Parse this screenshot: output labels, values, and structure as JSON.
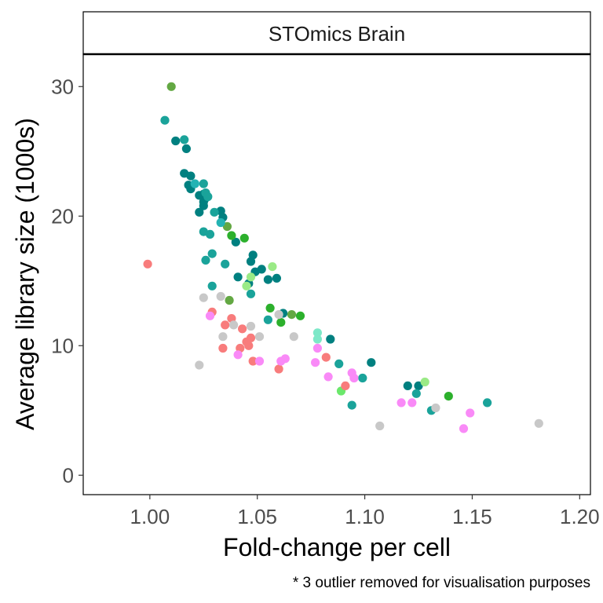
{
  "chart_data": {
    "type": "scatter",
    "panel_title": "STOmics Brain",
    "xlabel": "Fold-change per cell",
    "ylabel": "Average library size (1000s)",
    "footnote": "* 3 outlier removed for visualisation purposes",
    "xlim": [
      0.969,
      1.205
    ],
    "ylim": [
      -1.5,
      32.5
    ],
    "x_ticks": [
      1.0,
      1.05,
      1.1,
      1.15,
      1.2
    ],
    "x_tick_labels": [
      "1.00",
      "1.05",
      "1.10",
      "1.15",
      "1.20"
    ],
    "y_ticks": [
      0,
      10,
      20,
      30
    ],
    "y_tick_labels": [
      "0",
      "10",
      "20",
      "30"
    ],
    "grid": false,
    "legend": "none",
    "series": [
      {
        "color": "#008080",
        "points": [
          [
            1.012,
            25.8
          ],
          [
            1.017,
            25.2
          ],
          [
            1.016,
            23.3
          ],
          [
            1.019,
            23.1
          ],
          [
            1.018,
            22.4
          ],
          [
            1.019,
            22.1
          ],
          [
            1.023,
            21.6
          ],
          [
            1.025,
            21.7
          ],
          [
            1.026,
            21.4
          ],
          [
            1.025,
            21.1
          ],
          [
            1.025,
            20.8
          ],
          [
            1.023,
            20.3
          ],
          [
            1.033,
            20.4
          ],
          [
            1.034,
            19.9
          ],
          [
            1.04,
            18.0
          ],
          [
            1.048,
            17.0
          ],
          [
            1.047,
            16.5
          ],
          [
            1.052,
            15.9
          ],
          [
            1.049,
            15.7
          ],
          [
            1.055,
            15.1
          ],
          [
            1.059,
            15.2
          ],
          [
            1.041,
            15.3
          ],
          [
            1.046,
            14.8
          ],
          [
            1.062,
            12.5
          ],
          [
            1.084,
            10.5
          ],
          [
            1.103,
            8.7
          ],
          [
            1.12,
            6.9
          ],
          [
            1.125,
            6.9
          ]
        ]
      },
      {
        "color": "#1AA39A",
        "points": [
          [
            1.007,
            27.4
          ],
          [
            1.016,
            25.9
          ],
          [
            1.025,
            22.5
          ],
          [
            1.026,
            21.8
          ],
          [
            1.027,
            21.5
          ],
          [
            1.028,
            18.6
          ],
          [
            1.03,
            20.3
          ],
          [
            1.025,
            18.8
          ],
          [
            1.029,
            17.1
          ],
          [
            1.026,
            16.6
          ],
          [
            1.035,
            16.3
          ],
          [
            1.029,
            14.6
          ],
          [
            1.047,
            14.0
          ],
          [
            1.055,
            12.0
          ],
          [
            1.088,
            8.6
          ],
          [
            1.099,
            7.5
          ],
          [
            1.094,
            5.4
          ],
          [
            1.124,
            6.3
          ],
          [
            1.131,
            5.0
          ],
          [
            1.157,
            5.6
          ]
        ]
      },
      {
        "color": "#2CB02C",
        "points": [
          [
            1.038,
            18.5
          ],
          [
            1.044,
            18.3
          ],
          [
            1.056,
            12.9
          ],
          [
            1.061,
            11.8
          ],
          [
            1.07,
            12.3
          ],
          [
            1.139,
            6.1
          ]
        ]
      },
      {
        "color": "#63A843",
        "points": [
          [
            1.01,
            30.0
          ],
          [
            1.036,
            19.2
          ],
          [
            1.037,
            13.5
          ],
          [
            1.066,
            12.4
          ]
        ]
      },
      {
        "color": "#24B3B3",
        "points": [
          [
            1.021,
            22.5
          ],
          [
            1.033,
            19.5
          ]
        ]
      },
      {
        "color": "#9AEA86",
        "points": [
          [
            1.045,
            14.6
          ],
          [
            1.047,
            15.3
          ],
          [
            1.057,
            16.1
          ],
          [
            1.128,
            7.2
          ]
        ]
      },
      {
        "color": "#7DE8C8",
        "points": [
          [
            1.078,
            11.0
          ],
          [
            1.078,
            10.5
          ]
        ]
      },
      {
        "color": "#6BE86B",
        "points": [
          [
            1.089,
            6.5
          ]
        ]
      },
      {
        "color": "#F87C7C",
        "points": [
          [
            0.999,
            16.3
          ],
          [
            1.029,
            12.6
          ],
          [
            1.035,
            11.6
          ],
          [
            1.038,
            12.1
          ],
          [
            1.043,
            11.3
          ],
          [
            1.045,
            10.3
          ],
          [
            1.046,
            10.0
          ],
          [
            1.047,
            10.6
          ],
          [
            1.042,
            9.8
          ],
          [
            1.034,
            9.8
          ],
          [
            1.048,
            8.8
          ],
          [
            1.06,
            8.2
          ],
          [
            1.082,
            9.1
          ],
          [
            1.091,
            6.9
          ]
        ]
      },
      {
        "color": "#F98AF7",
        "points": [
          [
            1.028,
            12.3
          ],
          [
            1.041,
            9.3
          ],
          [
            1.051,
            8.8
          ],
          [
            1.061,
            8.8
          ],
          [
            1.063,
            9.0
          ],
          [
            1.078,
            9.8
          ],
          [
            1.077,
            8.7
          ],
          [
            1.083,
            7.6
          ],
          [
            1.094,
            7.9
          ],
          [
            1.095,
            7.5
          ],
          [
            1.117,
            5.6
          ],
          [
            1.122,
            5.6
          ],
          [
            1.146,
            3.6
          ],
          [
            1.149,
            4.8
          ]
        ]
      },
      {
        "color": "#C8C8C8",
        "points": [
          [
            1.025,
            13.7
          ],
          [
            1.033,
            13.8
          ],
          [
            1.034,
            10.7
          ],
          [
            1.039,
            11.6
          ],
          [
            1.047,
            11.5
          ],
          [
            1.051,
            10.7
          ],
          [
            1.023,
            8.5
          ],
          [
            1.06,
            12.4
          ],
          [
            1.067,
            10.7
          ],
          [
            1.107,
            3.8
          ],
          [
            1.133,
            5.2
          ],
          [
            1.181,
            4.0
          ]
        ]
      }
    ]
  }
}
